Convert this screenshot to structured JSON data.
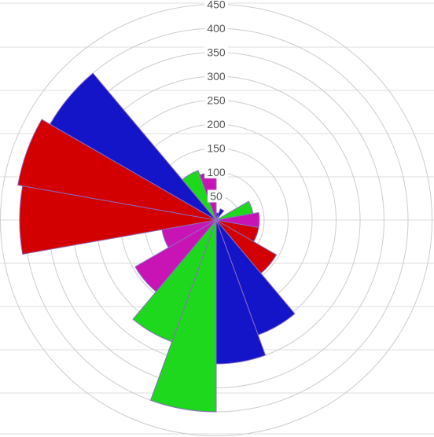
{
  "chart_data": {
    "type": "polar-area",
    "r_ticks": [
      0,
      50,
      100,
      150,
      200,
      250,
      300,
      350,
      400,
      450
    ],
    "r_max": 450,
    "grid": true,
    "sectors": [
      {
        "start_deg": 0,
        "end_deg": 20,
        "value": 15,
        "color": "#1a14c6"
      },
      {
        "start_deg": 20,
        "end_deg": 40,
        "value": 25,
        "color": "#1a14c6"
      },
      {
        "start_deg": 60,
        "end_deg": 80,
        "value": 78,
        "color": "#1ed81e"
      },
      {
        "start_deg": 80,
        "end_deg": 100,
        "value": 90,
        "color": "#c814b4"
      },
      {
        "start_deg": 100,
        "end_deg": 120,
        "value": 90,
        "color": "#d20000"
      },
      {
        "start_deg": 120,
        "end_deg": 140,
        "value": 145,
        "color": "#d20000"
      },
      {
        "start_deg": 140,
        "end_deg": 160,
        "value": 255,
        "color": "#1414c8"
      },
      {
        "start_deg": 160,
        "end_deg": 180,
        "value": 300,
        "color": "#1414c8"
      },
      {
        "start_deg": 180,
        "end_deg": 200,
        "value": 400,
        "color": "#1ed81e"
      },
      {
        "start_deg": 200,
        "end_deg": 220,
        "value": 270,
        "color": "#1ed81e"
      },
      {
        "start_deg": 220,
        "end_deg": 240,
        "value": 195,
        "color": "#c814b4"
      },
      {
        "start_deg": 240,
        "end_deg": 260,
        "value": 115,
        "color": "#c814b4"
      },
      {
        "start_deg": 260,
        "end_deg": 280,
        "value": 410,
        "color": "#d20000"
      },
      {
        "start_deg": 280,
        "end_deg": 300,
        "value": 420,
        "color": "#d20000"
      },
      {
        "start_deg": 300,
        "end_deg": 320,
        "value": 400,
        "color": "#1414c8"
      },
      {
        "start_deg": 320,
        "end_deg": 340,
        "value": 110,
        "color": "#1ed81e"
      },
      {
        "start_deg": 340,
        "end_deg": 360,
        "value": 100,
        "color": "#c814b4"
      }
    ]
  }
}
